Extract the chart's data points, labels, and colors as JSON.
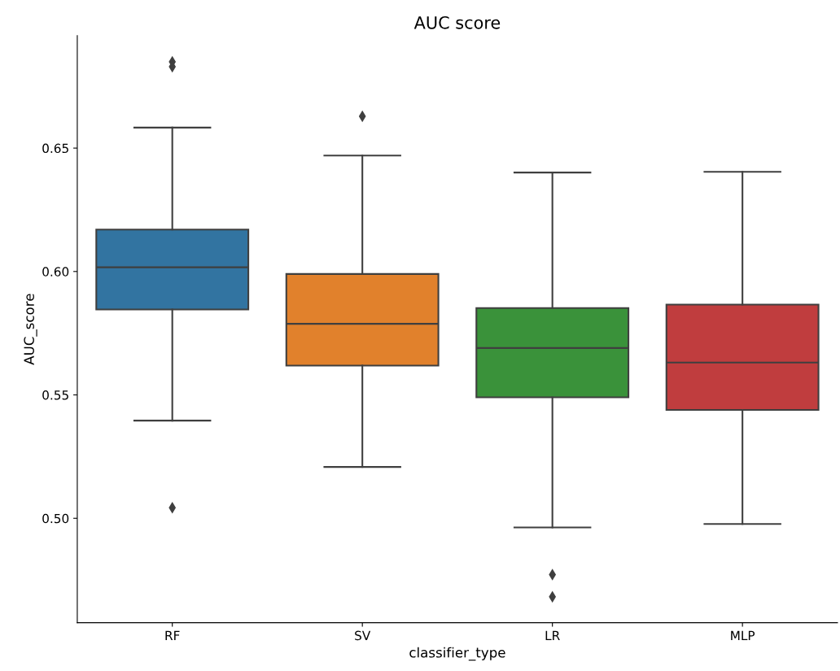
{
  "chart_data": {
    "type": "box",
    "title": "AUC score",
    "xlabel": "classifier_type",
    "ylabel": "AUC_score",
    "categories": [
      "RF",
      "SV",
      "LR",
      "MLP"
    ],
    "colors": [
      "#3274a1",
      "#e1812c",
      "#3a923a",
      "#c03d3e"
    ],
    "boxes": [
      {
        "low": 0.5396,
        "q1": 0.5846,
        "median": 0.6017,
        "q3": 0.617,
        "high": 0.6583,
        "outliers": [
          0.685,
          0.683,
          0.5043
        ]
      },
      {
        "low": 0.5208,
        "q1": 0.5619,
        "median": 0.5788,
        "q3": 0.599,
        "high": 0.647,
        "outliers": [
          0.6629
        ]
      },
      {
        "low": 0.4963,
        "q1": 0.549,
        "median": 0.569,
        "q3": 0.5852,
        "high": 0.6401,
        "outliers": [
          0.4772,
          0.4682
        ]
      },
      {
        "low": 0.4977,
        "q1": 0.5439,
        "median": 0.5631,
        "q3": 0.5866,
        "high": 0.6404
      }
    ],
    "ylim": [
      0.4577,
      0.6956
    ],
    "yticks": [
      {
        "value": 0.5,
        "label": "0.50"
      },
      {
        "value": 0.55,
        "label": "0.55"
      },
      {
        "value": 0.6,
        "label": "0.60"
      },
      {
        "value": 0.65,
        "label": "0.65"
      }
    ],
    "grid": false,
    "marker": "diamond"
  }
}
